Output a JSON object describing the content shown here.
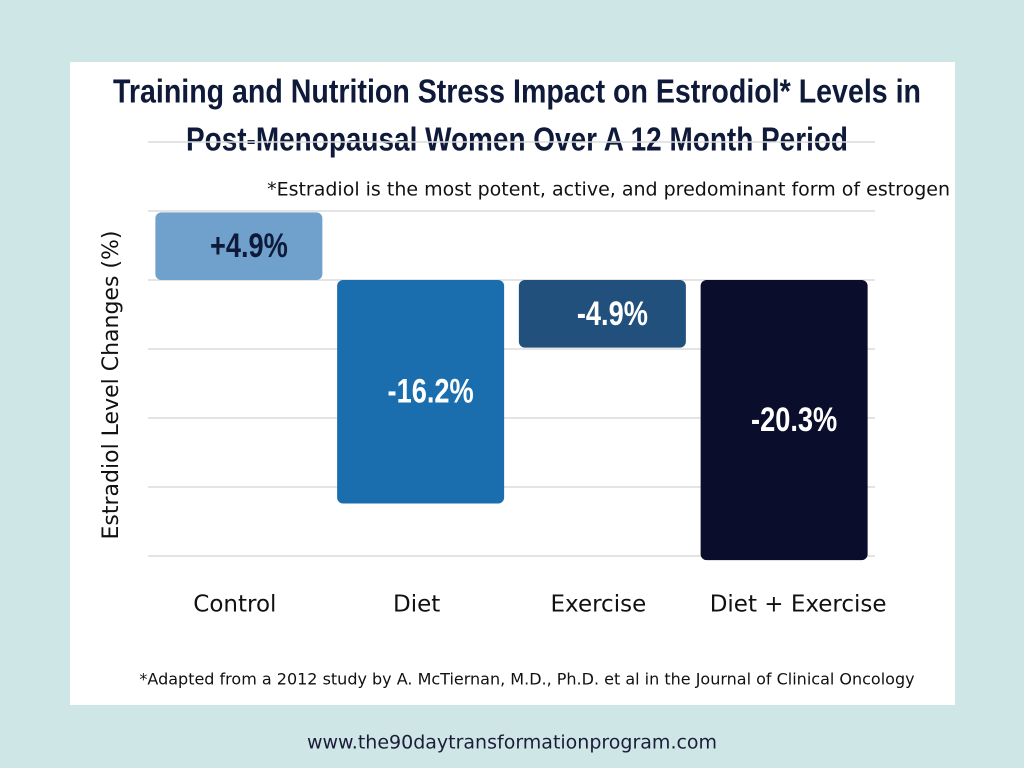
{
  "chart_data": {
    "type": "bar",
    "title": [
      "Training and Nutrition Stress Impact on Estrodiol* Levels in",
      "Post-Menopausal Women Over A 12 Month Period"
    ],
    "subtitle": "*Estradiol is the most potent, active, and predominant form of estrogen",
    "ylabel": "Estradiol Level Changes (%)",
    "categories": [
      "Control",
      "Diet",
      "Exercise",
      "Diet + Exercise"
    ],
    "values": [
      4.9,
      -16.2,
      -4.9,
      -20.3
    ],
    "value_labels": [
      "+4.9%",
      "-16.2%",
      "-4.9%",
      "-20.3%"
    ],
    "colors": [
      "#6fa1cc",
      "#1a6eae",
      "#21507d",
      "#0a0e2c"
    ],
    "ylim": [
      -20,
      10
    ],
    "yticks": [
      -20,
      -15,
      -10,
      -5,
      0,
      5,
      10
    ],
    "grid": true,
    "note": "*Adapted from a 2012 study by A. McTiernan, M.D., Ph.D. et al in the  Journal of Clinical Oncology"
  },
  "footer": {
    "url": "www.the90daytransformationprogram.com"
  }
}
